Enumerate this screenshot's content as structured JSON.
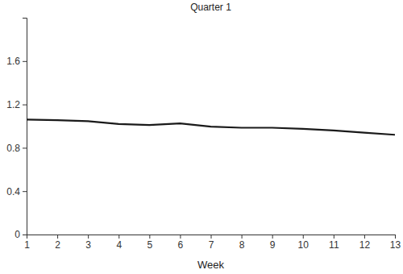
{
  "chart_data": {
    "type": "line",
    "title": "Quarter 1",
    "x_label": "Week",
    "x": [
      1,
      2,
      3,
      4,
      5,
      6,
      7,
      8,
      9,
      10,
      11,
      12,
      13
    ],
    "series": [
      {
        "name": "Quarter 1",
        "color": "#1a1a1a",
        "values": [
          1.06,
          1.055,
          1.045,
          1.02,
          1.01,
          1.025,
          0.995,
          0.985,
          0.985,
          0.975,
          0.96,
          0.94,
          0.92
        ]
      }
    ],
    "xlim": [
      1,
      13
    ],
    "xticks": [
      1,
      2,
      3,
      4,
      5,
      6,
      7,
      8,
      9,
      10,
      11,
      12,
      13
    ],
    "ylim": [
      0,
      2.0
    ],
    "yticks": [
      0,
      0.4,
      0.8,
      1.2,
      1.6
    ],
    "grid": false
  }
}
